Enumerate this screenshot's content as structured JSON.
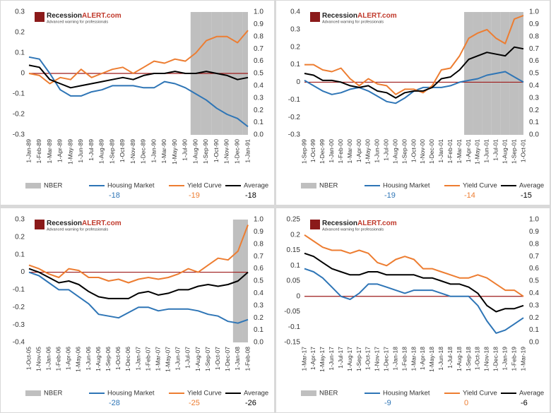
{
  "logo": {
    "brand": "Recession",
    "accent": "ALERT.com",
    "tagline": "Advanced warning for professionals"
  },
  "chart_data": [
    {
      "type": "line",
      "ylim": [
        -0.3,
        0.3
      ],
      "yticks": [
        -0.3,
        -0.2,
        -0.1,
        0,
        0.1,
        0.2,
        0.3
      ],
      "y2lim": [
        0,
        1
      ],
      "y2ticks": [
        {
          "value": 0,
          "label": "0.0"
        },
        {
          "value": 0.1,
          "label": "0.1"
        },
        {
          "value": 0.2,
          "label": "0.2"
        },
        {
          "value": 0.3,
          "label": "0.3"
        },
        {
          "value": 0.4,
          "label": "0.4"
        },
        {
          "value": 0.5,
          "label": "0.5"
        },
        {
          "value": 0.6,
          "label": "0.6"
        },
        {
          "value": 0.7,
          "label": "0.7"
        },
        {
          "value": 0.8,
          "label": "0.8"
        },
        {
          "value": 0.9,
          "label": "0.9"
        },
        {
          "value": 1,
          "label": "1.0"
        }
      ],
      "categories": [
        "1-Jan-89",
        "1-Feb-89",
        "1-Mar-89",
        "1-Apr-89",
        "1-May-89",
        "1-Jun-89",
        "1-Jul-89",
        "1-Aug-89",
        "1-Sep-89",
        "1-Oct-89",
        "1-Nov-89",
        "1-Dec-89",
        "1-Jan-90",
        "1-Mar-90",
        "1-May-90",
        "1-Jul-90",
        "1-Aug-90",
        "1-Sep-90",
        "1-Oct-90",
        "1-Nov-90",
        "1-Dec-90",
        "1-Jan-91"
      ],
      "series": [
        {
          "name": "NBER",
          "color": "#bfbfbf",
          "axis": "y2",
          "values": [
            null,
            null,
            null,
            null,
            null,
            null,
            null,
            null,
            null,
            null,
            null,
            null,
            null,
            null,
            null,
            null,
            1,
            1,
            1,
            1,
            1,
            1
          ]
        },
        {
          "name": "Housing Market",
          "color": "#2e75b6",
          "score": -18,
          "values": [
            0.08,
            0.07,
            0.0,
            -0.08,
            -0.11,
            -0.11,
            -0.09,
            -0.08,
            -0.06,
            -0.06,
            -0.06,
            -0.07,
            -0.07,
            -0.04,
            -0.05,
            -0.07,
            -0.1,
            -0.13,
            -0.17,
            -0.2,
            -0.22,
            -0.26
          ]
        },
        {
          "name": "Yield Curve",
          "color": "#ed7d31",
          "score": -19,
          "values": [
            0,
            -0.01,
            -0.05,
            -0.02,
            -0.03,
            0.02,
            -0.02,
            0,
            0.02,
            0.03,
            0.0,
            0.03,
            0.06,
            0.05,
            0.07,
            0.06,
            0.1,
            0.16,
            0.18,
            0.18,
            0.15,
            0.21
          ]
        },
        {
          "name": "Average",
          "color": "#000000",
          "score": -18,
          "values": [
            0.04,
            0.03,
            -0.03,
            -0.05,
            -0.07,
            -0.06,
            -0.05,
            -0.04,
            -0.03,
            -0.02,
            -0.03,
            -0.01,
            0,
            0,
            0.01,
            0,
            0,
            0.01,
            0,
            -0.01,
            -0.03,
            -0.02
          ]
        }
      ]
    },
    {
      "type": "line",
      "ylim": [
        -0.3,
        0.4
      ],
      "yticks": [
        -0.3,
        -0.2,
        -0.1,
        0,
        0.1,
        0.2,
        0.3,
        0.4
      ],
      "y2lim": [
        0,
        1
      ],
      "y2ticks": [
        {
          "value": 0,
          "label": "0.0"
        },
        {
          "value": 0.1,
          "label": "0.1"
        },
        {
          "value": 0.2,
          "label": "0.2"
        },
        {
          "value": 0.3,
          "label": "0.3"
        },
        {
          "value": 0.4,
          "label": "0.4"
        },
        {
          "value": 0.5,
          "label": "0.5"
        },
        {
          "value": 0.6,
          "label": "0.6"
        },
        {
          "value": 0.7,
          "label": "0.7"
        },
        {
          "value": 0.8,
          "label": "0.8"
        },
        {
          "value": 0.9,
          "label": "0.9"
        },
        {
          "value": 1,
          "label": "1.0"
        }
      ],
      "categories": [
        "1-Sep-99",
        "1-Oct-99",
        "1-Dec-99",
        "1-Jan-00",
        "1-Feb-00",
        "1-Mar-00",
        "1-Apr-00",
        "1-May-00",
        "1-Jun-00",
        "1-Jul-00",
        "1-Aug-00",
        "1-Sep-00",
        "1-Oct-00",
        "1-Nov-00",
        "1-Dec-00",
        "1-Jan-01",
        "1-Feb-01",
        "1-Mar-01",
        "1-Apr-01",
        "1-May-01",
        "1-Jun-01",
        "1-Jul-01",
        "1-Aug-01",
        "1-Sep-01",
        "1-Oct-01"
      ],
      "series": [
        {
          "name": "NBER",
          "color": "#bfbfbf",
          "axis": "y2",
          "values": [
            null,
            null,
            null,
            null,
            null,
            null,
            null,
            null,
            null,
            null,
            null,
            null,
            null,
            null,
            null,
            null,
            null,
            null,
            1,
            1,
            1,
            1,
            1,
            1,
            1
          ]
        },
        {
          "name": "Housing Market",
          "color": "#2e75b6",
          "score": -19,
          "values": [
            0.01,
            -0.02,
            -0.05,
            -0.07,
            -0.06,
            -0.04,
            -0.03,
            -0.05,
            -0.08,
            -0.11,
            -0.12,
            -0.09,
            -0.05,
            -0.03,
            -0.03,
            -0.03,
            -0.02,
            0,
            0.01,
            0.02,
            0.04,
            0.05,
            0.06,
            0.03,
            0.0
          ]
        },
        {
          "name": "Yield Curve",
          "color": "#ed7d31",
          "score": -14,
          "values": [
            0.1,
            0.1,
            0.07,
            0.06,
            0.08,
            0.02,
            -0.02,
            0.02,
            -0.01,
            -0.02,
            -0.07,
            -0.04,
            -0.04,
            -0.06,
            -0.02,
            0.07,
            0.08,
            0.15,
            0.25,
            0.28,
            0.3,
            0.25,
            0.22,
            0.36,
            0.38
          ]
        },
        {
          "name": "Average",
          "color": "#000000",
          "score": -15,
          "values": [
            0.05,
            0.04,
            0.01,
            0.01,
            0.0,
            -0.02,
            -0.03,
            -0.02,
            -0.05,
            -0.06,
            -0.09,
            -0.06,
            -0.05,
            -0.05,
            -0.03,
            0.02,
            0.03,
            0.07,
            0.13,
            0.15,
            0.17,
            0.16,
            0.15,
            0.2,
            0.19
          ]
        }
      ]
    },
    {
      "type": "line",
      "ylim": [
        -0.4,
        0.3
      ],
      "yticks": [
        -0.4,
        -0.3,
        -0.2,
        -0.1,
        0,
        0.1,
        0.2,
        0.3
      ],
      "y2lim": [
        0,
        1
      ],
      "y2ticks": [
        {
          "value": 0,
          "label": "0.0"
        },
        {
          "value": 0.1,
          "label": "0.1"
        },
        {
          "value": 0.2,
          "label": "0.2"
        },
        {
          "value": 0.3,
          "label": "0.3"
        },
        {
          "value": 0.4,
          "label": "0.4"
        },
        {
          "value": 0.5,
          "label": "0.5"
        },
        {
          "value": 0.6,
          "label": "0.6"
        },
        {
          "value": 0.7,
          "label": "0.7"
        },
        {
          "value": 0.8,
          "label": "0.8"
        },
        {
          "value": 0.9,
          "label": "0.9"
        },
        {
          "value": 1,
          "label": "1.0"
        }
      ],
      "categories": [
        "1-Oct-05",
        "1-Nov-05",
        "1-Jan-06",
        "1-Feb-06",
        "1-Apr-06",
        "1-May-06",
        "1-Jun-06",
        "1-Aug-06",
        "1-Sep-06",
        "1-Oct-06",
        "1-Dec-06",
        "1-Jan-07",
        "1-Feb-07",
        "1-Mar-07",
        "1-May-07",
        "1-Jun-07",
        "1-Jul-07",
        "1-Aug-07",
        "1-Sep-07",
        "1-Oct-07",
        "1-Dec-07",
        "1-Jan-08",
        "1-Feb-08"
      ],
      "series": [
        {
          "name": "NBER",
          "color": "#bfbfbf",
          "axis": "y2",
          "values": [
            null,
            null,
            null,
            null,
            null,
            null,
            null,
            null,
            null,
            null,
            null,
            null,
            null,
            null,
            null,
            null,
            null,
            null,
            null,
            null,
            null,
            1,
            1
          ]
        },
        {
          "name": "Housing Market",
          "color": "#2e75b6",
          "score": -28,
          "values": [
            0,
            -0.02,
            -0.06,
            -0.1,
            -0.1,
            -0.14,
            -0.18,
            -0.24,
            -0.25,
            -0.26,
            -0.23,
            -0.2,
            -0.2,
            -0.22,
            -0.21,
            -0.21,
            -0.21,
            -0.22,
            -0.24,
            -0.25,
            -0.28,
            -0.29,
            -0.27
          ]
        },
        {
          "name": "Yield Curve",
          "color": "#ed7d31",
          "score": -25,
          "values": [
            0.04,
            0.02,
            -0.01,
            -0.03,
            0.02,
            0.01,
            -0.03,
            -0.03,
            -0.05,
            -0.04,
            -0.06,
            -0.04,
            -0.03,
            -0.04,
            -0.03,
            -0.01,
            0.02,
            0.0,
            0.04,
            0.08,
            0.07,
            0.12,
            0.27
          ]
        },
        {
          "name": "Average",
          "color": "#000000",
          "score": -26,
          "values": [
            0.02,
            0.0,
            -0.03,
            -0.06,
            -0.05,
            -0.07,
            -0.11,
            -0.14,
            -0.15,
            -0.15,
            -0.15,
            -0.12,
            -0.11,
            -0.13,
            -0.12,
            -0.1,
            -0.1,
            -0.08,
            -0.07,
            -0.08,
            -0.07,
            -0.05,
            0.0
          ]
        }
      ]
    },
    {
      "type": "line",
      "ylim": [
        -0.15,
        0.25
      ],
      "yticks": [
        -0.15,
        -0.1,
        -0.05,
        0,
        0.05,
        0.1,
        0.15,
        0.2,
        0.25
      ],
      "y2lim": [
        0,
        1
      ],
      "y2ticks": [
        {
          "value": 0,
          "label": "0.0"
        },
        {
          "value": 0.1,
          "label": "0.1"
        },
        {
          "value": 0.2,
          "label": "0.2"
        },
        {
          "value": 0.3,
          "label": "0.3"
        },
        {
          "value": 0.4,
          "label": "0.4"
        },
        {
          "value": 0.5,
          "label": "0.5"
        },
        {
          "value": 0.6,
          "label": "0.6"
        },
        {
          "value": 0.7,
          "label": "0.7"
        },
        {
          "value": 0.8,
          "label": "0.8"
        },
        {
          "value": 0.9,
          "label": "0.9"
        },
        {
          "value": 1,
          "label": "1.0"
        }
      ],
      "categories": [
        "1-Mar-17",
        "1-Apr-17",
        "1-May-17",
        "1-Jun-17",
        "1-Jul-17",
        "1-Aug-17",
        "1-Sep-17",
        "1-Oct-17",
        "1-Nov-17",
        "1-Dec-17",
        "1-Jan-18",
        "1-Feb-18",
        "1-Mar-18",
        "1-Apr-18",
        "1-May-18",
        "1-Jun-18",
        "1-Jul-18",
        "1-Aug-18",
        "1-Sep-18",
        "1-Oct-18",
        "1-Nov-18",
        "1-Dec-18",
        "1-Jan-19",
        "1-Feb-19",
        "1-Mar-19"
      ],
      "series": [
        {
          "name": "NBER",
          "color": "#bfbfbf",
          "axis": "y2",
          "values": [
            null,
            null,
            null,
            null,
            null,
            null,
            null,
            null,
            null,
            null,
            null,
            null,
            null,
            null,
            null,
            null,
            null,
            null,
            null,
            null,
            null,
            null,
            null,
            null,
            null
          ]
        },
        {
          "name": "Housing Market",
          "color": "#2e75b6",
          "score": -9,
          "values": [
            0.09,
            0.08,
            0.06,
            0.03,
            0.0,
            -0.01,
            0.01,
            0.04,
            0.04,
            0.03,
            0.02,
            0.01,
            0.02,
            0.02,
            0.02,
            0.01,
            0.0,
            0.0,
            0.0,
            -0.03,
            -0.08,
            -0.12,
            -0.11,
            -0.09,
            -0.07
          ]
        },
        {
          "name": "Yield Curve",
          "color": "#ed7d31",
          "score": 0,
          "values": [
            0.2,
            0.18,
            0.16,
            0.15,
            0.15,
            0.14,
            0.15,
            0.14,
            0.11,
            0.1,
            0.12,
            0.13,
            0.12,
            0.09,
            0.09,
            0.08,
            0.07,
            0.06,
            0.06,
            0.07,
            0.06,
            0.04,
            0.02,
            0.02,
            0.0
          ]
        },
        {
          "name": "Average",
          "color": "#000000",
          "score": -6,
          "values": [
            0.14,
            0.13,
            0.11,
            0.09,
            0.08,
            0.07,
            0.07,
            0.08,
            0.08,
            0.07,
            0.07,
            0.07,
            0.07,
            0.06,
            0.06,
            0.05,
            0.04,
            0.04,
            0.03,
            0.01,
            -0.03,
            -0.05,
            -0.04,
            -0.04,
            -0.03
          ]
        }
      ]
    }
  ]
}
